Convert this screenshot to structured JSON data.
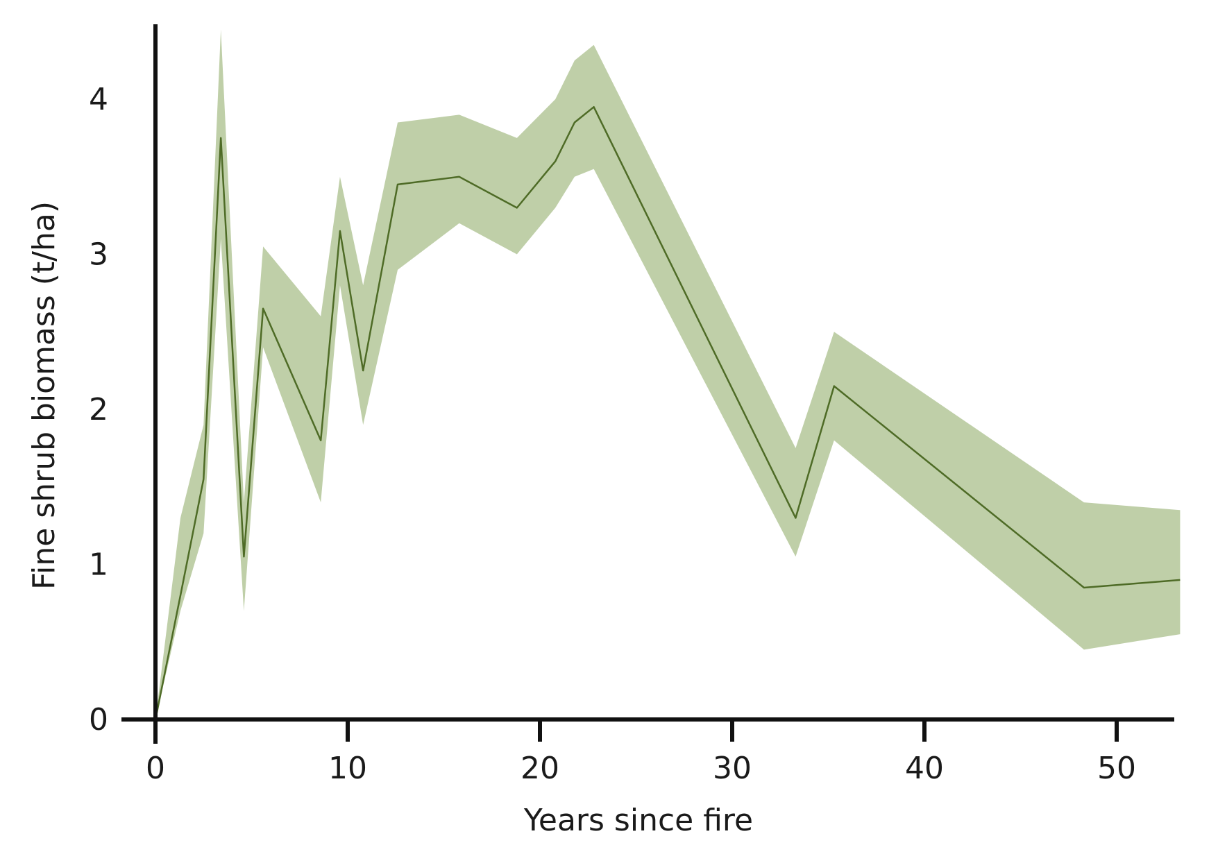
{
  "chart_data": {
    "type": "line",
    "title": "",
    "xlabel": "Years since fire",
    "ylabel": "Fine shrub biomass (t/ha)",
    "xlim": [
      0,
      53
    ],
    "ylim": [
      0,
      4.5
    ],
    "xticks": [
      0,
      10,
      20,
      30,
      40,
      50
    ],
    "yticks": [
      0,
      1,
      2,
      3,
      4
    ],
    "grid": false,
    "legend": "none",
    "colors": {
      "line": "#4e6b26",
      "band": "#bfcfa8",
      "axis": "#111111"
    },
    "series": [
      {
        "x": [
          0,
          1.3,
          2.5,
          3.4,
          4.6,
          5.6,
          8.6,
          9.6,
          10.8,
          12.6,
          15.8,
          18.8,
          20.8,
          21.8,
          22.8,
          33.3,
          35.3,
          48.3,
          53.3
        ],
        "y": [
          0,
          0.8,
          1.55,
          3.75,
          1.05,
          2.65,
          1.8,
          3.15,
          2.25,
          3.45,
          3.5,
          3.3,
          3.6,
          3.85,
          3.95,
          1.3,
          2.15,
          0.85,
          0.9
        ],
        "lower": [
          0,
          0.7,
          1.2,
          3.1,
          0.7,
          2.4,
          1.4,
          2.8,
          1.9,
          2.9,
          3.2,
          3.0,
          3.3,
          3.5,
          3.55,
          1.05,
          1.8,
          0.45,
          0.55
        ],
        "upper": [
          0,
          1.3,
          1.9,
          4.45,
          1.4,
          3.05,
          2.6,
          3.5,
          2.8,
          3.85,
          3.9,
          3.75,
          4.0,
          4.25,
          4.35,
          1.75,
          2.5,
          1.4,
          1.35
        ]
      }
    ]
  }
}
